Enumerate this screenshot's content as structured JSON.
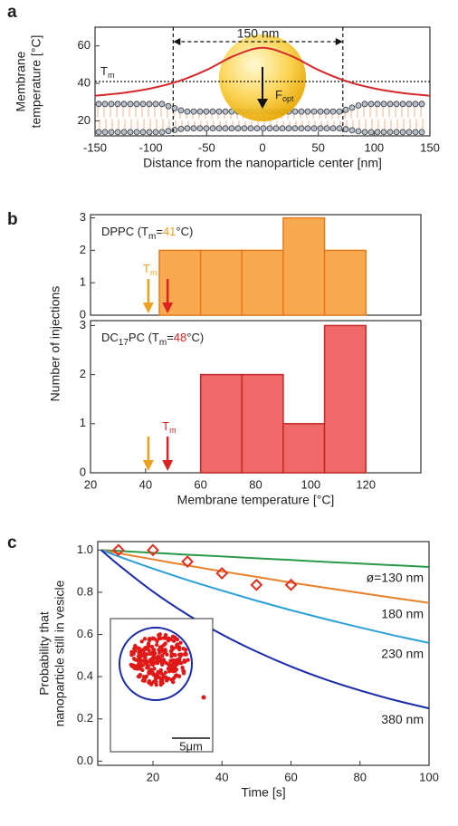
{
  "chart_data": [
    {
      "type": "line",
      "panel": "a",
      "xlabel": "Distance from the nanoparticle center [nm]",
      "ylabel": [
        "Membrane",
        "temperature [°C]"
      ],
      "x": [
        -150,
        -125,
        -100,
        -75,
        -50,
        -25,
        0,
        25,
        50,
        75,
        100,
        125,
        150
      ],
      "series": [
        {
          "color": "#d42a2a",
          "values": [
            33.4,
            34.9,
            37.3,
            41.2,
            47.2,
            54.8,
            59,
            54.8,
            47.2,
            41.2,
            37.3,
            34.9,
            33.4
          ]
        }
      ],
      "xlim": [
        -150,
        150
      ],
      "ylim": [
        12,
        70
      ],
      "xticks": [
        -150,
        -100,
        -50,
        0,
        50,
        100,
        150
      ],
      "yticks": [
        20,
        40,
        60
      ],
      "tm_line": {
        "label": "T",
        "sub": "m",
        "value": 41
      },
      "bracket": {
        "label": "150 nm",
        "from": -80,
        "to": 72
      },
      "force": {
        "label": "F",
        "sub": "opt"
      }
    },
    {
      "type": "histogram",
      "panel": "b",
      "ylabel": "Number of injections",
      "title_parts": [
        {
          "text": "DPPC (T"
        },
        {
          "text": "m",
          "sub": true
        },
        {
          "text": "="
        },
        {
          "text": "°C)"
        }
      ],
      "bins": [
        45,
        60,
        75,
        90,
        105,
        120
      ],
      "values": [
        2,
        2,
        2,
        3,
        2
      ],
      "color": "#f9a94f",
      "edge": "#e67a1e",
      "xlim": [
        20,
        140
      ],
      "ylim": [
        0,
        3.1
      ],
      "yticks": [
        0,
        1,
        2,
        3
      ],
      "arrows": [
        {
          "value": 41,
          "color": "#eea020",
          "label": "T",
          "sub": "m"
        },
        {
          "value": 48,
          "color": "#dd2222"
        }
      ]
    },
    {
      "type": "histogram",
      "xlabel": "Membrane temperature [°C]",
      "title_parts": [
        {
          "text": "DC"
        },
        {
          "text": "17",
          "sub": true
        },
        {
          "text": "PC (T"
        },
        {
          "text": "m",
          "sub": true
        },
        {
          "text": "="
        },
        {
          "text": "°C)"
        }
      ],
      "bins": [
        60,
        75,
        90,
        105,
        120
      ],
      "values": [
        2,
        2,
        1,
        3
      ],
      "color": "#f06868",
      "edge": "#c42828",
      "xlim": [
        20,
        140
      ],
      "ylim": [
        0,
        3.1
      ],
      "xticks": [
        20,
        40,
        60,
        80,
        100,
        120
      ],
      "yticks": [
        0,
        1,
        2,
        3
      ],
      "arrows": [
        {
          "value": 41,
          "color": "#eea020"
        },
        {
          "value": 48,
          "color": "#dd2222",
          "label": "T",
          "sub": "m"
        }
      ]
    },
    {
      "type": "line",
      "panel": "c",
      "xlabel": "Time [s]",
      "ylabel": [
        "Probability that",
        "nanoparticle still in vesicle"
      ],
      "x": [
        5,
        10,
        20,
        30,
        40,
        50,
        60,
        70,
        80,
        90,
        100
      ],
      "series": [
        {
          "name": "ø=130 nm",
          "color": "#2a9a4a",
          "values": [
            1,
            0.996,
            0.987,
            0.978,
            0.97,
            0.961,
            0.953,
            0.944,
            0.936,
            0.928,
            0.92
          ]
        },
        {
          "name": "180 nm",
          "color": "#e8822a",
          "values": [
            1,
            0.985,
            0.956,
            0.927,
            0.899,
            0.873,
            0.846,
            0.821,
            0.797,
            0.773,
            0.75
          ]
        },
        {
          "name": "230 nm",
          "color": "#2aa0d8",
          "values": [
            1,
            0.97,
            0.912,
            0.858,
            0.808,
            0.76,
            0.715,
            0.673,
            0.633,
            0.595,
            0.56
          ]
        },
        {
          "name": "380 nm",
          "color": "#1a2aaa",
          "values": [
            1,
            0.93,
            0.803,
            0.694,
            0.6,
            0.519,
            0.448,
            0.387,
            0.335,
            0.289,
            0.25
          ]
        }
      ],
      "markers": {
        "color": "#e03020",
        "x": [
          10,
          20,
          30,
          40,
          50,
          60
        ],
        "y": [
          1.0,
          1.0,
          0.945,
          0.89,
          0.835,
          0.835
        ]
      },
      "xlim": [
        4,
        100
      ],
      "ylim": [
        -0.02,
        1.04
      ],
      "xticks": [
        20,
        40,
        60,
        80,
        100
      ],
      "yticks": [
        {
          "value": 0,
          "label": "0.0"
        },
        {
          "value": 0.2,
          "label": "0.2"
        },
        {
          "value": 0.4,
          "label": "0.4"
        },
        {
          "value": 0.6,
          "label": "0.6"
        },
        {
          "value": 0.8,
          "label": "0.8"
        },
        {
          "value": 1,
          "label": "1.0"
        }
      ],
      "inset_scale": "5μm"
    }
  ]
}
